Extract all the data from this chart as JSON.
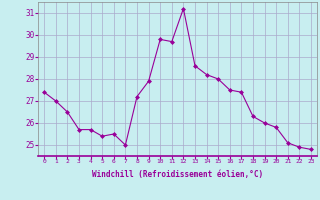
{
  "x": [
    0,
    1,
    2,
    3,
    4,
    5,
    6,
    7,
    8,
    9,
    10,
    11,
    12,
    13,
    14,
    15,
    16,
    17,
    18,
    19,
    20,
    21,
    22,
    23
  ],
  "y": [
    27.4,
    27.0,
    26.5,
    25.7,
    25.7,
    25.4,
    25.5,
    25.0,
    27.2,
    27.9,
    29.8,
    29.7,
    31.2,
    28.6,
    28.2,
    28.0,
    27.5,
    27.4,
    26.3,
    26.0,
    25.8,
    25.1,
    24.9,
    24.8
  ],
  "line_color": "#990099",
  "marker": "D",
  "marker_size": 2.0,
  "bg_color": "#c8eef0",
  "grid_color": "#aaaacc",
  "xlabel": "Windchill (Refroidissement éolien,°C)",
  "xlabel_color": "#990099",
  "tick_color": "#990099",
  "ylim": [
    24.5,
    31.5
  ],
  "yticks": [
    25,
    26,
    27,
    28,
    29,
    30,
    31
  ],
  "xlim": [
    -0.5,
    23.5
  ],
  "xticks": [
    0,
    1,
    2,
    3,
    4,
    5,
    6,
    7,
    8,
    9,
    10,
    11,
    12,
    13,
    14,
    15,
    16,
    17,
    18,
    19,
    20,
    21,
    22,
    23
  ],
  "xtick_labels": [
    "0",
    "1",
    "2",
    "3",
    "4",
    "5",
    "6",
    "7",
    "8",
    "9",
    "10",
    "11",
    "12",
    "13",
    "14",
    "15",
    "16",
    "17",
    "18",
    "19",
    "20",
    "21",
    "22",
    "23"
  ]
}
